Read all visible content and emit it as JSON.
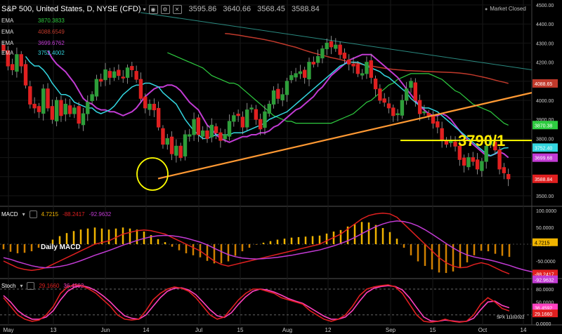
{
  "header": {
    "title": "S&P 500, United States, D, NYSE (CFD)",
    "open": "3595.86",
    "high": "3640.66",
    "low": "3568.45",
    "close": "3588.84",
    "market_status": "Market Closed"
  },
  "ema_legend": [
    {
      "name": "EMA",
      "value": "3870.3833",
      "color": "#2ecc40"
    },
    {
      "name": "EMA",
      "value": "4088.6549",
      "color": "#c0392b"
    },
    {
      "name": "EMA",
      "value": "3699.6762",
      "color": "#c23bd4"
    },
    {
      "name": "EMA",
      "value": "3752.4002",
      "color": "#33d6e0"
    }
  ],
  "annotation": {
    "level_label": "3790/1",
    "macd_label": "Daily MACD",
    "spx_label": "SPX 11102022"
  },
  "colors": {
    "up": "#2e9e3a",
    "down": "#e02020",
    "ema_fast": "#33d6e0",
    "ema_mid": "#c23bd4",
    "ema_slow": "#2ecc40",
    "ema_long": "#c0392b",
    "trendline": "#ff9933",
    "level": "#ffff00",
    "circle": "#ffff00"
  },
  "chart_data": [
    {
      "type": "candlestick",
      "ylim": [
        3450,
        4500
      ],
      "y_ticks": [
        "4500.00",
        "4400.00",
        "4300.00",
        "4200.00",
        "4100.00",
        "4000.00",
        "3900.00",
        "3800.00",
        "3700.00",
        "3600.00",
        "3500.00"
      ],
      "x_ticks": [
        "May",
        "13",
        "Jun",
        "14",
        "Jul",
        "15",
        "Aug",
        "12",
        "Sep",
        "15",
        "Oct",
        "14"
      ],
      "price_labels": [
        {
          "text": "4088.65",
          "value": 4088.65,
          "color": "#c0392b"
        },
        {
          "text": "3870.38",
          "value": 3870.38,
          "color": "#2ecc40"
        },
        {
          "text": "3752.40",
          "value": 3752.4,
          "color": "#33d6e0"
        },
        {
          "text": "3699.68",
          "value": 3699.68,
          "color": "#c23bd4"
        },
        {
          "text": "3588.84",
          "value": 3588.84,
          "color": "#e02020"
        }
      ],
      "horizontal_level": 3790,
      "closes": [
        4260,
        4180,
        4160,
        4240,
        4180,
        4080,
        3980,
        3960,
        3940,
        4060,
        3960,
        3900,
        4000,
        3920,
        3980,
        3930,
        3960,
        3880,
        3930,
        3990,
        4030,
        4110,
        4100,
        4160,
        4120,
        4150,
        4130,
        4120,
        4170,
        4160,
        4110,
        4010,
        3960,
        3980,
        3950,
        3860,
        3770,
        3800,
        3720,
        3760,
        3700,
        3820,
        3820,
        3900,
        3820,
        3840,
        3800,
        3870,
        3830,
        3790,
        3820,
        3890,
        3920,
        3920,
        3860,
        3950,
        3960,
        3900,
        3850,
        3940,
        3980,
        4050,
        4010,
        4030,
        4100,
        4130,
        4140,
        4150,
        4120,
        4200,
        4190,
        4230,
        4270,
        4300,
        4280,
        4290,
        4240,
        4220,
        4190,
        4180,
        4140,
        4140,
        4200,
        4120,
        4060,
        4000,
        3990,
        3960,
        3920,
        3930,
        4000,
        4060,
        4100,
        4000,
        3930,
        3940,
        3920,
        3880,
        3860,
        3790,
        3770,
        3790,
        3760,
        3690,
        3660,
        3700,
        3680,
        3640,
        3680,
        3760,
        3790,
        3740,
        3640,
        3620,
        3588.84
      ],
      "ema_fast": [
        4230,
        4200,
        4180,
        4180,
        4160,
        4130,
        4090,
        4060,
        4030,
        4030,
        4020,
        3990,
        3980,
        3970,
        3960,
        3960,
        3940,
        3930,
        3940,
        3950,
        3970,
        4000,
        4030,
        4050,
        4070,
        4080,
        4080,
        4090,
        4090,
        4080,
        4070,
        4040,
        4020,
        4000,
        3980,
        3940,
        3900,
        3870,
        3840,
        3820,
        3800,
        3800,
        3810,
        3820,
        3820,
        3820,
        3820,
        3830,
        3830,
        3830,
        3840,
        3850,
        3860,
        3870,
        3880,
        3900,
        3910,
        3920,
        3930,
        3940,
        3960,
        3980,
        4000,
        4020,
        4040,
        4060,
        4080,
        4100,
        4120,
        4140,
        4160,
        4180,
        4190,
        4200,
        4200,
        4200,
        4190,
        4180,
        4170,
        4160,
        4150,
        4130,
        4120,
        4100,
        4080,
        4060,
        4040,
        4010,
        3990,
        3970,
        3960,
        3960,
        3950,
        3940,
        3920,
        3900,
        3880,
        3860,
        3840,
        3820,
        3800,
        3780,
        3760,
        3740,
        3720,
        3710,
        3720,
        3740,
        3750,
        3752
      ],
      "ema_mid": [
        4260,
        4220,
        4190,
        4170,
        4150,
        4120,
        4090,
        4050,
        4010,
        3990,
        3980,
        3960,
        3950,
        3950,
        3940,
        3940,
        3930,
        3920,
        3930,
        3940,
        3960,
        3990,
        4020,
        4040,
        4060,
        4070,
        4070,
        4080,
        4080,
        4070,
        4050,
        4020,
        3990,
        3970,
        3950,
        3910,
        3870,
        3850,
        3820,
        3800,
        3790,
        3780,
        3790,
        3800,
        3810,
        3810,
        3820,
        3820,
        3830,
        3830,
        3840,
        3860,
        3870,
        3890,
        3910,
        3930,
        3950,
        3960,
        3980,
        4000,
        4020,
        4050,
        4070,
        4100,
        4130,
        4150,
        4170,
        4190,
        4210,
        4220,
        4230,
        4240,
        4240,
        4240,
        4220,
        4200,
        4180,
        4160,
        4140,
        4120,
        4090,
        4060,
        4030,
        4000,
        3970,
        3950,
        3930,
        3920,
        3920,
        3930,
        3920,
        3900,
        3870,
        3840,
        3810,
        3790,
        3770,
        3750,
        3730,
        3710,
        3710,
        3720,
        3730,
        3720,
        3700
      ],
      "ema_slow": [
        4250,
        4240,
        4230,
        4220,
        4210,
        4200,
        4190,
        4180,
        4170,
        4150,
        4130,
        4120,
        4110,
        4100,
        4090,
        4090,
        4080,
        4060,
        4040,
        4020,
        4000,
        3980,
        3960,
        3940,
        3920,
        3910,
        3900,
        3890,
        3890,
        3880,
        3880,
        3880,
        3880,
        3880,
        3880,
        3880,
        3880,
        3880,
        3890,
        3900,
        3910,
        3920,
        3930,
        3950,
        3970,
        3990,
        4000,
        4020,
        4040,
        4060,
        4080,
        4090,
        4110,
        4120,
        4130,
        4140,
        4140,
        4140,
        4140,
        4140,
        4130,
        4120,
        4110,
        4090,
        4070,
        4050,
        4040,
        4020,
        4000,
        3980,
        3970,
        3960,
        3950,
        3940,
        3920,
        3900,
        3880,
        3870
      ],
      "ema_long": [
        4350,
        4348,
        4345,
        4342,
        4338,
        4334,
        4330,
        4326,
        4322,
        4318,
        4313,
        4308,
        4302,
        4296,
        4290,
        4284,
        4278,
        4270,
        4262,
        4255,
        4248,
        4242,
        4236,
        4230,
        4224,
        4219,
        4214,
        4208,
        4203,
        4198,
        4193,
        4188,
        4184,
        4180,
        4176,
        4172,
        4168,
        4165,
        4162,
        4160,
        4158,
        4156,
        4155,
        4154,
        4153,
        4152,
        4151,
        4150,
        4149,
        4148,
        4147,
        4146,
        4145,
        4143,
        4140,
        4137,
        4133,
        4128,
        4123,
        4118,
        4112,
        4106,
        4100,
        4095,
        4088.65
      ]
    },
    {
      "type": "bar+line",
      "name": "MACD",
      "header_values": [
        "4.7215",
        "-88.2417",
        "-92.9632"
      ],
      "ylim": [
        -100,
        100
      ],
      "y_ticks": [
        "100.0000",
        "50.0000",
        "0.0000",
        "-50.0000"
      ],
      "value_labels": [
        "4.7215",
        "-88.2417",
        "-92.9632"
      ],
      "macd": [
        -50,
        -60,
        -70,
        -75,
        -78,
        -75,
        -70,
        -60,
        -50,
        -40,
        -30,
        -20,
        -10,
        0,
        5,
        10,
        20,
        30,
        35,
        40,
        42,
        40,
        35,
        30,
        20,
        10,
        0,
        -10,
        -20,
        -35,
        -50,
        -60,
        -65,
        -60,
        -55,
        -50,
        -45,
        -40,
        -35,
        -30,
        -25,
        -20,
        -15,
        -10,
        -5,
        0,
        10,
        20,
        30,
        45,
        60,
        75,
        85,
        90,
        92,
        90,
        80,
        60,
        40,
        20,
        0,
        -20,
        -40,
        -55,
        -65,
        -70,
        -68,
        -60,
        -55,
        -60,
        -70,
        -80,
        -88.2
      ],
      "signal": [
        -40,
        -45,
        -52,
        -58,
        -64,
        -68,
        -70,
        -69,
        -66,
        -62,
        -56,
        -49,
        -41,
        -33,
        -26,
        -19,
        -11,
        -3,
        4,
        11,
        17,
        22,
        25,
        26,
        25,
        22,
        18,
        12,
        6,
        -2,
        -12,
        -22,
        -31,
        -37,
        -41,
        -43,
        -44,
        -43,
        -41,
        -39,
        -36,
        -33,
        -29,
        -25,
        -21,
        -17,
        -11,
        -5,
        2,
        10,
        20,
        31,
        42,
        52,
        60,
        66,
        69,
        67,
        62,
        54,
        43,
        30,
        16,
        2,
        -11,
        -23,
        -32,
        -38,
        -42,
        -46,
        -51,
        -57,
        -63,
        -70,
        -76,
        -81,
        -86,
        -90,
        -93
      ]
    },
    {
      "type": "line",
      "name": "Stoch",
      "header_values": [
        "29.1660",
        "36.4592"
      ],
      "ylim": [
        0,
        100
      ],
      "y_ticks": [
        "80.0000",
        "50.0000",
        "0.0000"
      ],
      "value_labels": [
        "36.4592",
        "29.1660"
      ],
      "k": [
        60,
        40,
        20,
        10,
        5,
        8,
        20,
        40,
        70,
        85,
        90,
        88,
        80,
        70,
        55,
        40,
        20,
        10,
        8,
        10,
        30,
        55,
        70,
        80,
        85,
        82,
        75,
        60,
        40,
        20,
        10,
        15,
        35,
        55,
        70,
        80,
        80,
        75,
        70,
        60,
        55,
        50,
        45,
        30,
        20,
        10,
        5,
        10,
        20,
        40,
        65,
        80,
        85,
        88,
        90,
        85,
        70,
        45,
        20,
        5,
        3,
        5,
        10,
        5,
        3,
        5,
        20,
        45,
        60,
        50,
        35,
        29.2
      ],
      "d": [
        65,
        50,
        30,
        18,
        10,
        10,
        15,
        30,
        55,
        75,
        85,
        88,
        84,
        76,
        64,
        50,
        33,
        18,
        12,
        10,
        20,
        40,
        60,
        75,
        82,
        83,
        78,
        67,
        50,
        32,
        18,
        14,
        25,
        45,
        62,
        75,
        80,
        78,
        73,
        66,
        58,
        52,
        47,
        37,
        27,
        17,
        10,
        10,
        15,
        30,
        52,
        72,
        82,
        86,
        88,
        86,
        78,
        60,
        37,
        15,
        6,
        5,
        8,
        6,
        4,
        5,
        12,
        32,
        50,
        52,
        42,
        36.5
      ]
    }
  ]
}
